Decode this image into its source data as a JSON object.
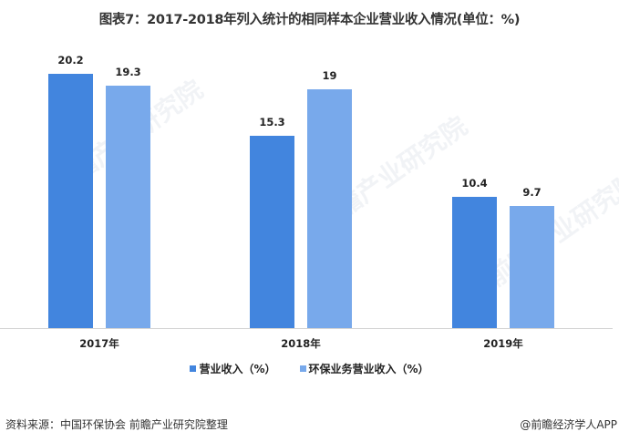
{
  "header": {
    "title": "图表7：2017-2018年列入统计的相同样本企业营业收入情况(单位：%)"
  },
  "legend": {
    "items": [
      {
        "label": "营业收入（%）",
        "color": "#4285DE"
      },
      {
        "label": "环保业务营业收入（%）",
        "color": "#78A9EB"
      }
    ]
  },
  "footer": {
    "source": "资料来源：中国环保协会 前瞻产业研究院整理",
    "credit": "@前瞻经济学人APP"
  },
  "watermark": {
    "text": "前瞻产业研究院"
  },
  "chart_data": {
    "type": "bar",
    "title": "图表7：2017-2018年列入统计的相同样本企业营业收入情况(单位：%)",
    "xlabel": "",
    "ylabel": "",
    "categories": [
      "2017年",
      "2018年",
      "2019年"
    ],
    "series": [
      {
        "name": "营业收入（%）",
        "values": [
          20.2,
          15.3,
          10.4
        ],
        "color": "#4285DE"
      },
      {
        "name": "环保业务营业收入（%）",
        "values": [
          19.3,
          19,
          9.7
        ],
        "color": "#78A9EB"
      }
    ],
    "value_labels": [
      [
        "20.2",
        "15.3",
        "10.4"
      ],
      [
        "19.3",
        "19",
        "9.7"
      ]
    ],
    "ylim": [
      0,
      22
    ],
    "grid": false,
    "legend_position": "bottom"
  }
}
